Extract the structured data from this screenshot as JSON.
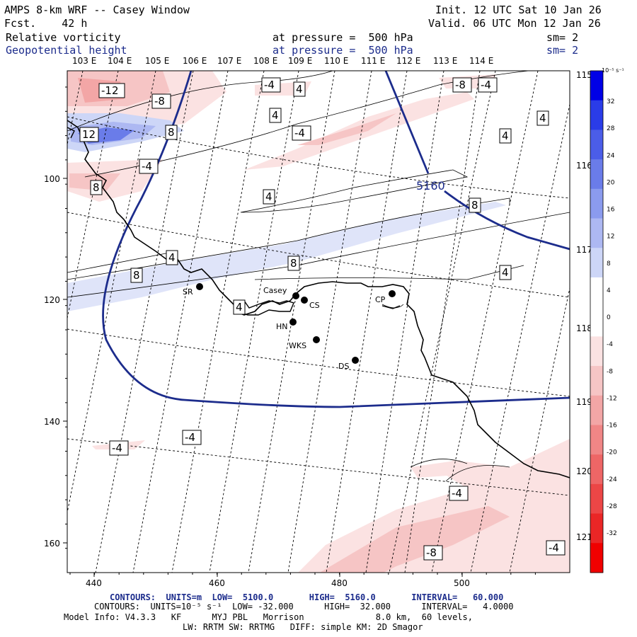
{
  "header": {
    "title": "AMPS 8-km WRF -- Casey Window",
    "forecast": "Fcst.    42 h",
    "init": "Init. 12 UTC Sat 10 Jan 26",
    "valid": "Valid. 06 UTC Mon 12 Jan 26",
    "field1_name": "Relative vorticity",
    "field1_level": "at pressure =  500 hPa",
    "field1_sm": "sm= 2",
    "field2_name": "Geopotential height",
    "field2_level": "at pressure =  500 hPa",
    "field2_sm": "sm= 2"
  },
  "colorbar": {
    "units": "10⁻⁵ s⁻¹",
    "labels": [
      "32",
      "28",
      "24",
      "20",
      "16",
      "12",
      "8",
      "4",
      "0",
      "-4",
      "-8",
      "-12",
      "-16",
      "-20",
      "-24",
      "-28",
      "-32"
    ],
    "colors": [
      "#0000e6",
      "#2a3ce8",
      "#4b5de8",
      "#6a7ce9",
      "#8b9bee",
      "#adb8f2",
      "#cdd6f7",
      "#ffffff",
      "#ffffff",
      "#fbe2e2",
      "#f6c5c5",
      "#f3a6a6",
      "#f08686",
      "#ee6666",
      "#ec4646",
      "#ea2626",
      "#f00000"
    ]
  },
  "map": {
    "lon_labels_top": [
      "103 E",
      "104 E",
      "105 E",
      "106 E",
      "107 E",
      "108 E",
      "109 E",
      "110 E",
      "111 E",
      "112 E",
      "113 E",
      "114 E"
    ],
    "lon_labels_right": [
      "115 E",
      "116 E",
      "117 E",
      "118 E",
      "119 E",
      "120 E",
      "121 E"
    ],
    "x_ticks": [
      "440",
      "460",
      "480",
      "500"
    ],
    "y_ticks": [
      "100",
      "120",
      "140",
      "160"
    ],
    "height_contour_label": "5160",
    "vort_labels": {
      "l1": "-12",
      "l2": "-8",
      "l3": "12",
      "l4": "8",
      "l5": "-4",
      "l6": "8",
      "l7": "-4",
      "l8": "4",
      "l9": "4",
      "l10": "-4",
      "l11": "-8",
      "l12": "-4",
      "l13": "4",
      "l14": "4",
      "l15": "4",
      "l16": "8",
      "l17": "4",
      "l18": "8",
      "l19": "8",
      "l20": "4",
      "l21": "4",
      "l22": "-4",
      "l23": "-4",
      "l24": "-4",
      "l25": "-8",
      "l26": "-4"
    },
    "stations": {
      "sr": "SR",
      "casey": "Casey",
      "cs": "CS",
      "cp": "CP",
      "hn": "HN",
      "wks": "WKS",
      "ds": "DS"
    }
  },
  "footer": {
    "line1": "CONTOURS:  UNITS=m  LOW=  5100.0       HIGH=  5160.0       INTERVAL=   60.000",
    "line2": "CONTOURS:  UNITS=10⁻⁵ s⁻¹  LOW= -32.000      HIGH=  32.000      INTERVAL=   4.0000",
    "line3": "Model Info: V4.3.3   KF      MYJ PBL   Morrison              8.0 km,  60 levels,",
    "line4": "LW: RRTM SW: RRTMG   DIFF: simple KM: 2D Smagor"
  }
}
